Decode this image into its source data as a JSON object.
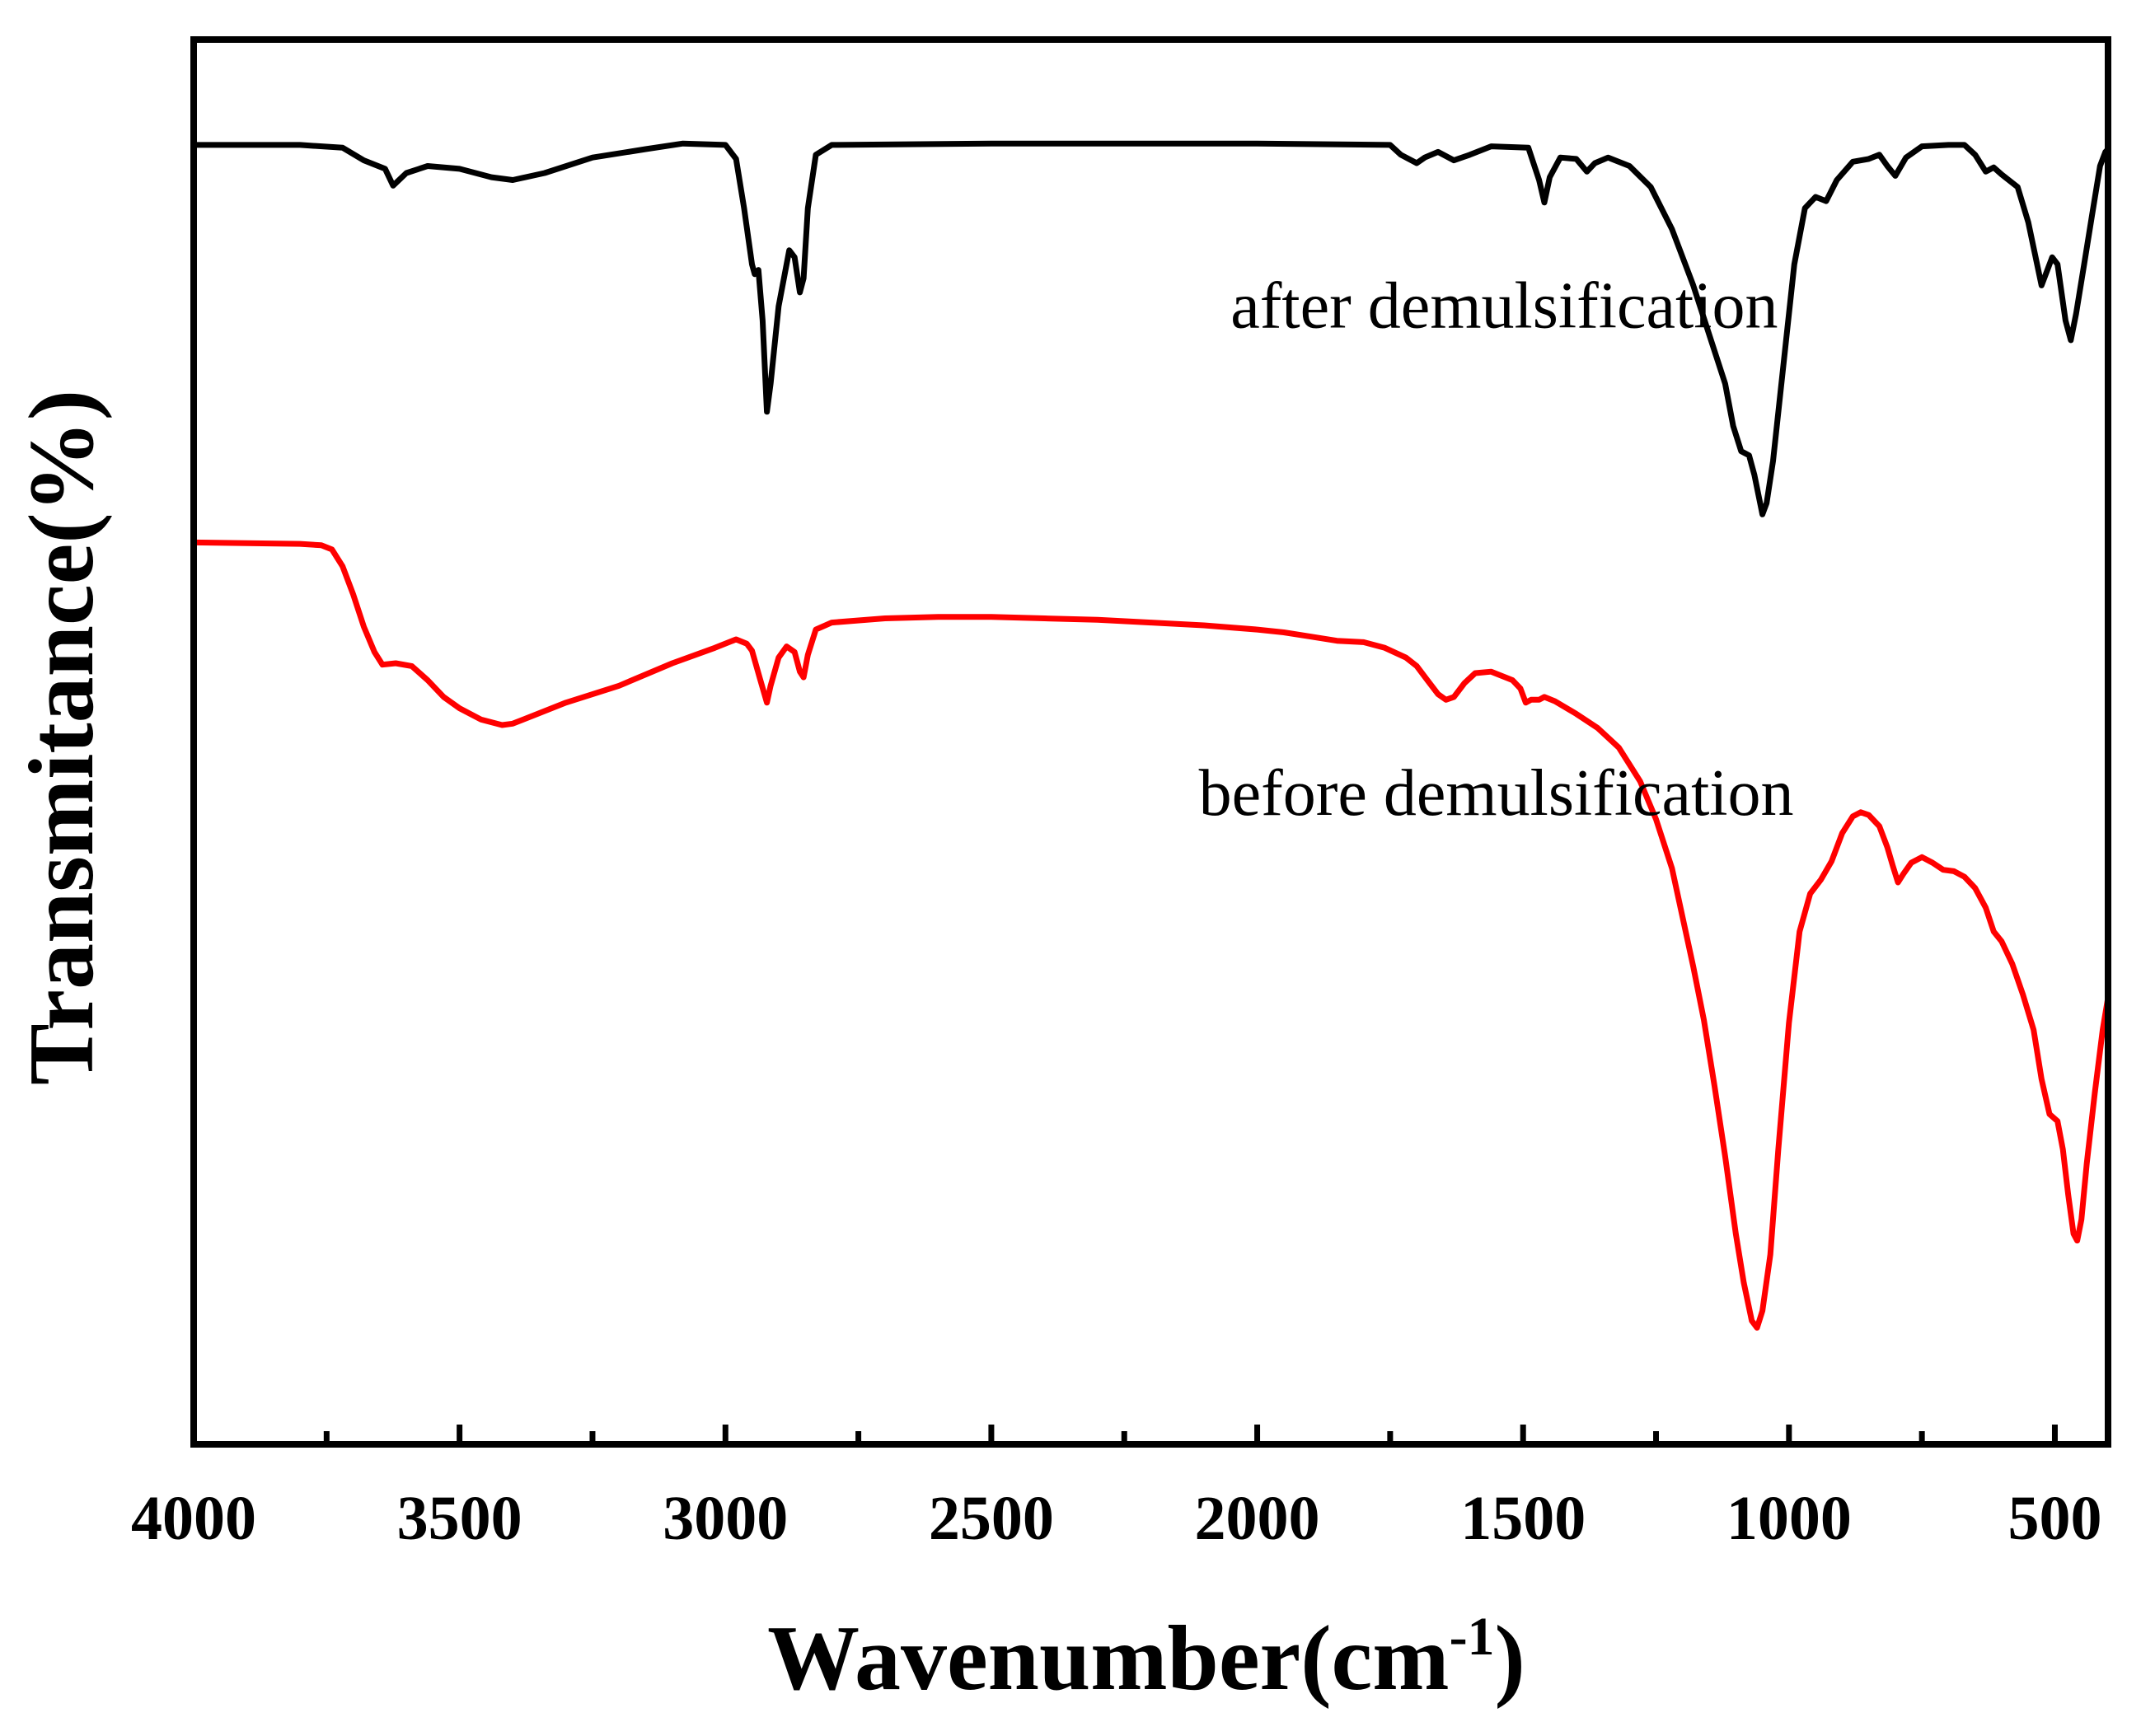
{
  "chart_data": {
    "type": "line",
    "title": "",
    "xlabel": "Wavenumber(cm",
    "xlabel_superscript": "-1",
    "xlabel_close": ")",
    "ylabel": "Transmitance(%)",
    "xlim": [
      4000,
      400
    ],
    "ylim": [
      0,
      100
    ],
    "x_ticks": [
      4000,
      3500,
      3000,
      2500,
      2000,
      1500,
      1000,
      500
    ],
    "x_tick_labels": [
      "4000",
      "3500",
      "3000",
      "2500",
      "2000",
      "1500",
      "1000",
      "500"
    ],
    "minor_x_ticks": [
      3750,
      3250,
      2750,
      2250,
      1750,
      1250,
      750
    ],
    "y_ticks_shown": false,
    "grid": false,
    "legend": "none",
    "series": [
      {
        "name": "after demulsification",
        "color": "#000000",
        "points": [
          [
            4000,
            92.5
          ],
          [
            3800,
            92.5
          ],
          [
            3720,
            92.3
          ],
          [
            3680,
            91.4
          ],
          [
            3640,
            90.8
          ],
          [
            3625,
            89.6
          ],
          [
            3600,
            90.5
          ],
          [
            3560,
            91.0
          ],
          [
            3500,
            90.8
          ],
          [
            3440,
            90.2
          ],
          [
            3400,
            90.0
          ],
          [
            3340,
            90.5
          ],
          [
            3250,
            91.6
          ],
          [
            3150,
            92.2
          ],
          [
            3080,
            92.6
          ],
          [
            3000,
            92.5
          ],
          [
            2980,
            91.5
          ],
          [
            2965,
            88.0
          ],
          [
            2950,
            84.0
          ],
          [
            2945,
            83.3
          ],
          [
            2938,
            83.6
          ],
          [
            2930,
            80.0
          ],
          [
            2922,
            73.5
          ],
          [
            2915,
            75.5
          ],
          [
            2900,
            81.0
          ],
          [
            2880,
            85.0
          ],
          [
            2870,
            84.5
          ],
          [
            2860,
            82.0
          ],
          [
            2853,
            83.0
          ],
          [
            2845,
            88.0
          ],
          [
            2830,
            91.8
          ],
          [
            2800,
            92.5
          ],
          [
            2500,
            92.6
          ],
          [
            2000,
            92.6
          ],
          [
            1750,
            92.5
          ],
          [
            1730,
            91.8
          ],
          [
            1700,
            91.2
          ],
          [
            1685,
            91.6
          ],
          [
            1660,
            92.0
          ],
          [
            1630,
            91.4
          ],
          [
            1600,
            91.8
          ],
          [
            1560,
            92.4
          ],
          [
            1490,
            92.3
          ],
          [
            1470,
            90.0
          ],
          [
            1460,
            88.4
          ],
          [
            1450,
            90.2
          ],
          [
            1430,
            91.6
          ],
          [
            1400,
            91.5
          ],
          [
            1380,
            90.6
          ],
          [
            1365,
            91.2
          ],
          [
            1340,
            91.6
          ],
          [
            1300,
            91.0
          ],
          [
            1260,
            89.5
          ],
          [
            1220,
            86.5
          ],
          [
            1180,
            82.5
          ],
          [
            1150,
            79.0
          ],
          [
            1120,
            75.5
          ],
          [
            1105,
            72.5
          ],
          [
            1090,
            70.7
          ],
          [
            1075,
            70.4
          ],
          [
            1065,
            69.0
          ],
          [
            1050,
            66.2
          ],
          [
            1042,
            67.0
          ],
          [
            1030,
            70.0
          ],
          [
            1010,
            77.0
          ],
          [
            990,
            84.0
          ],
          [
            970,
            88.0
          ],
          [
            950,
            88.8
          ],
          [
            930,
            88.5
          ],
          [
            910,
            90.0
          ],
          [
            880,
            91.3
          ],
          [
            850,
            91.5
          ],
          [
            830,
            91.8
          ],
          [
            815,
            91.0
          ],
          [
            800,
            90.3
          ],
          [
            780,
            91.6
          ],
          [
            750,
            92.4
          ],
          [
            700,
            92.5
          ],
          [
            670,
            92.5
          ],
          [
            650,
            91.8
          ],
          [
            630,
            90.6
          ],
          [
            615,
            90.9
          ],
          [
            600,
            90.4
          ],
          [
            570,
            89.5
          ],
          [
            550,
            87.0
          ],
          [
            525,
            82.5
          ],
          [
            515,
            83.5
          ],
          [
            505,
            84.5
          ],
          [
            495,
            84.0
          ],
          [
            480,
            80.0
          ],
          [
            470,
            78.6
          ],
          [
            460,
            80.5
          ],
          [
            445,
            84.0
          ],
          [
            430,
            87.5
          ],
          [
            415,
            91.0
          ],
          [
            405,
            92.0
          ],
          [
            400,
            92.2
          ]
        ]
      },
      {
        "name": "before demulsification",
        "color": "#ff0000",
        "points": [
          [
            4000,
            64.2
          ],
          [
            3800,
            64.1
          ],
          [
            3760,
            64.0
          ],
          [
            3740,
            63.7
          ],
          [
            3720,
            62.5
          ],
          [
            3700,
            60.5
          ],
          [
            3680,
            58.2
          ],
          [
            3660,
            56.4
          ],
          [
            3645,
            55.5
          ],
          [
            3620,
            55.6
          ],
          [
            3590,
            55.4
          ],
          [
            3560,
            54.4
          ],
          [
            3530,
            53.2
          ],
          [
            3500,
            52.4
          ],
          [
            3460,
            51.6
          ],
          [
            3420,
            51.2
          ],
          [
            3400,
            51.3
          ],
          [
            3360,
            51.9
          ],
          [
            3300,
            52.8
          ],
          [
            3200,
            54.0
          ],
          [
            3100,
            55.6
          ],
          [
            3020,
            56.7
          ],
          [
            2980,
            57.3
          ],
          [
            2960,
            57.0
          ],
          [
            2950,
            56.5
          ],
          [
            2935,
            54.5
          ],
          [
            2922,
            52.8
          ],
          [
            2915,
            54.0
          ],
          [
            2900,
            56.0
          ],
          [
            2885,
            56.8
          ],
          [
            2870,
            56.4
          ],
          [
            2860,
            55.0
          ],
          [
            2853,
            54.6
          ],
          [
            2845,
            56.2
          ],
          [
            2830,
            58.0
          ],
          [
            2800,
            58.5
          ],
          [
            2700,
            58.8
          ],
          [
            2600,
            58.9
          ],
          [
            2500,
            58.9
          ],
          [
            2400,
            58.8
          ],
          [
            2300,
            58.7
          ],
          [
            2200,
            58.5
          ],
          [
            2100,
            58.3
          ],
          [
            2000,
            58.0
          ],
          [
            1950,
            57.8
          ],
          [
            1900,
            57.5
          ],
          [
            1850,
            57.2
          ],
          [
            1800,
            57.1
          ],
          [
            1760,
            56.7
          ],
          [
            1720,
            56.0
          ],
          [
            1700,
            55.4
          ],
          [
            1680,
            54.4
          ],
          [
            1660,
            53.4
          ],
          [
            1645,
            53.0
          ],
          [
            1630,
            53.2
          ],
          [
            1610,
            54.2
          ],
          [
            1590,
            54.9
          ],
          [
            1560,
            55.0
          ],
          [
            1520,
            54.4
          ],
          [
            1505,
            53.8
          ],
          [
            1495,
            52.8
          ],
          [
            1485,
            53.0
          ],
          [
            1470,
            53.0
          ],
          [
            1460,
            53.2
          ],
          [
            1440,
            52.9
          ],
          [
            1400,
            52.0
          ],
          [
            1360,
            51.0
          ],
          [
            1320,
            49.6
          ],
          [
            1280,
            47.2
          ],
          [
            1250,
            44.5
          ],
          [
            1220,
            41.0
          ],
          [
            1200,
            37.5
          ],
          [
            1180,
            34.0
          ],
          [
            1160,
            30.2
          ],
          [
            1140,
            25.5
          ],
          [
            1120,
            20.5
          ],
          [
            1100,
            15.0
          ],
          [
            1085,
            11.5
          ],
          [
            1070,
            8.8
          ],
          [
            1060,
            8.3
          ],
          [
            1050,
            9.5
          ],
          [
            1035,
            13.5
          ],
          [
            1020,
            21.0
          ],
          [
            1000,
            30.0
          ],
          [
            980,
            36.5
          ],
          [
            960,
            39.2
          ],
          [
            940,
            40.2
          ],
          [
            920,
            41.5
          ],
          [
            900,
            43.5
          ],
          [
            880,
            44.7
          ],
          [
            865,
            45.0
          ],
          [
            850,
            44.8
          ],
          [
            830,
            44.0
          ],
          [
            815,
            42.5
          ],
          [
            805,
            41.2
          ],
          [
            795,
            40.0
          ],
          [
            785,
            40.6
          ],
          [
            770,
            41.4
          ],
          [
            750,
            41.8
          ],
          [
            730,
            41.4
          ],
          [
            710,
            40.9
          ],
          [
            690,
            40.8
          ],
          [
            670,
            40.4
          ],
          [
            650,
            39.6
          ],
          [
            630,
            38.2
          ],
          [
            615,
            36.5
          ],
          [
            600,
            35.8
          ],
          [
            580,
            34.2
          ],
          [
            560,
            32.0
          ],
          [
            540,
            29.5
          ],
          [
            525,
            26.0
          ],
          [
            510,
            23.5
          ],
          [
            495,
            23.0
          ],
          [
            485,
            21.0
          ],
          [
            475,
            17.8
          ],
          [
            465,
            15.0
          ],
          [
            458,
            14.5
          ],
          [
            450,
            16.0
          ],
          [
            440,
            20.0
          ],
          [
            425,
            25.0
          ],
          [
            410,
            29.5
          ],
          [
            400,
            31.8
          ]
        ]
      }
    ],
    "annotations": [
      {
        "text": "after demulsification",
        "x": 2050,
        "y": 79.5
      },
      {
        "text": "before demulsification",
        "x": 2110,
        "y": 44.8
      }
    ]
  }
}
